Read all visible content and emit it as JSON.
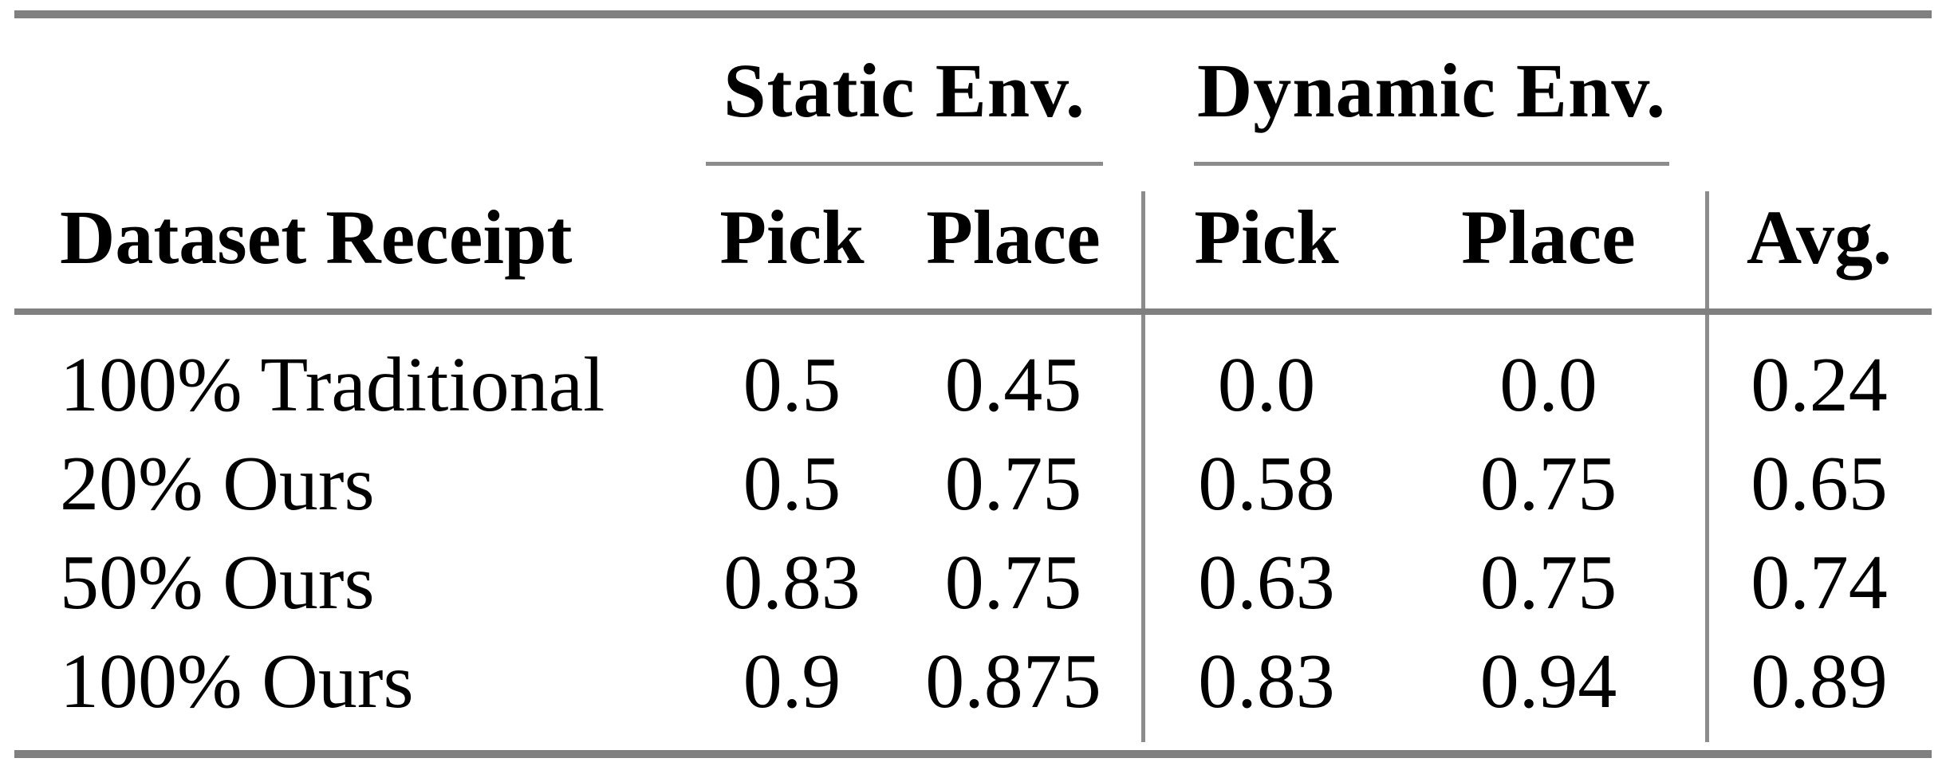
{
  "colors": {
    "background": "#ffffff",
    "text": "#000000",
    "thick_rule": "#808080",
    "thin_rule": "#8c8c8c"
  },
  "table": {
    "group_headers": [
      {
        "label": "Static Env."
      },
      {
        "label": "Dynamic Env."
      }
    ],
    "column_headers": [
      "Dataset Receipt",
      "Pick",
      "Place",
      "Pick",
      "Place",
      "Avg."
    ],
    "rows": [
      {
        "cells": [
          "100% Traditional",
          "0.5",
          "0.45",
          "0.0",
          "0.0",
          "0.24"
        ]
      },
      {
        "cells": [
          "20% Ours",
          "0.5",
          "0.75",
          "0.58",
          "0.75",
          "0.65"
        ]
      },
      {
        "cells": [
          "50% Ours",
          "0.83",
          "0.75",
          "0.63",
          "0.75",
          "0.74"
        ]
      },
      {
        "cells": [
          "100% Ours",
          "0.9",
          "0.875",
          "0.83",
          "0.94",
          "0.89"
        ]
      }
    ]
  },
  "chart_data": {
    "type": "table",
    "title": "",
    "columns": [
      "Dataset Receipt",
      "Static Env. Pick",
      "Static Env. Place",
      "Dynamic Env. Pick",
      "Dynamic Env. Place",
      "Avg."
    ],
    "rows": [
      [
        "100% Traditional",
        0.5,
        0.45,
        0.0,
        0.0,
        0.24
      ],
      [
        "20% Ours",
        0.5,
        0.75,
        0.58,
        0.75,
        0.65
      ],
      [
        "50% Ours",
        0.83,
        0.75,
        0.63,
        0.75,
        0.74
      ],
      [
        "100% Ours",
        0.9,
        0.875,
        0.83,
        0.94,
        0.89
      ]
    ]
  }
}
